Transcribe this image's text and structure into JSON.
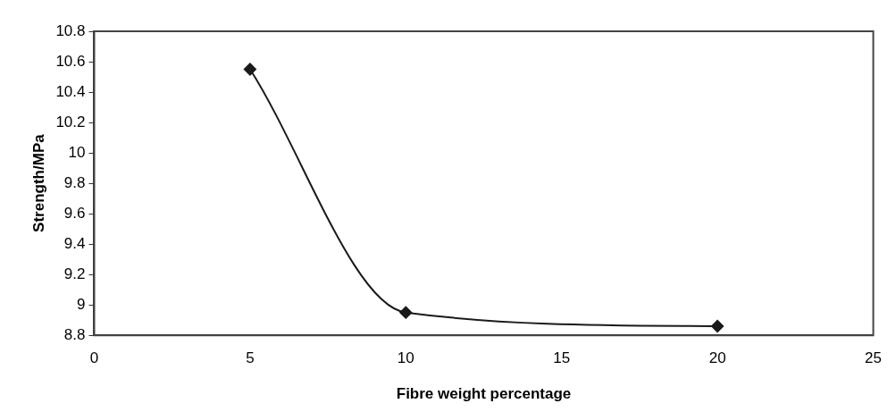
{
  "chart_data": {
    "type": "line",
    "xlabel": "Fibre weight percentage",
    "ylabel": "Strength/MPa",
    "x": [
      5,
      10,
      20
    ],
    "series": [
      {
        "color": "#1a1a1a",
        "values": [
          10.55,
          8.95,
          8.86
        ]
      }
    ],
    "xlim": [
      0,
      25
    ],
    "xticks": [
      0,
      5,
      10,
      15,
      20,
      25
    ],
    "ylim": [
      8.8,
      10.8
    ],
    "yticks": [
      8.8,
      9,
      9.2,
      9.4,
      9.6,
      9.8,
      10,
      10.2,
      10.4,
      10.6,
      10.8
    ],
    "grid": false,
    "legend": false,
    "marker": "diamond",
    "line_style": "solid"
  }
}
